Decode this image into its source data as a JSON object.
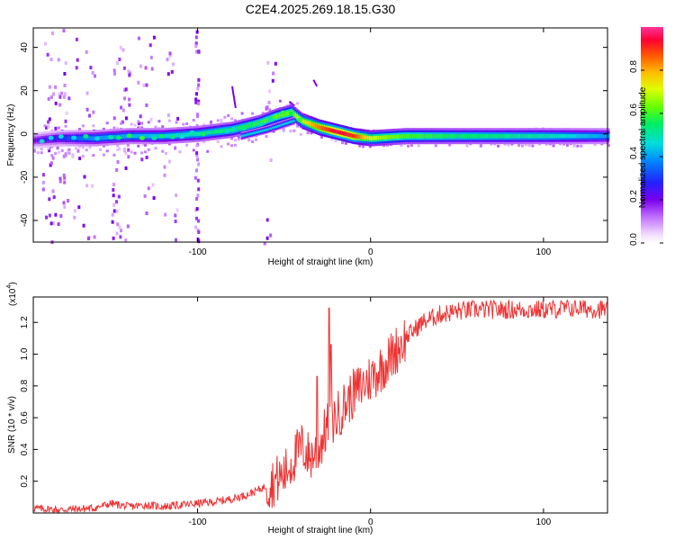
{
  "title": "C2E4.2025.269.18.15.G30",
  "chart_data": [
    {
      "type": "heatmap",
      "title": "C2E4.2025.269.18.15.G30",
      "xlabel": "Height of straight line (km)",
      "ylabel": "Frequency (Hz)",
      "xlim": [
        -195,
        137
      ],
      "ylim": [
        -50,
        49
      ],
      "x_ticks": [
        -100,
        0,
        100
      ],
      "x_tick_labels": [
        "-100",
        "0",
        "100"
      ],
      "y_ticks": [
        -40,
        -20,
        0,
        20,
        40
      ],
      "y_tick_labels": [
        "-40",
        "-20",
        "0",
        "20",
        "40"
      ],
      "colorbar": {
        "label": "Normalized spectral amplitude",
        "range": [
          0,
          1
        ],
        "ticks": [
          0.0,
          0.2,
          0.4,
          0.6,
          0.8
        ],
        "tick_labels": [
          "0.0",
          "0.2",
          "0.4",
          "0.6",
          "0.8"
        ]
      },
      "ridge_center_freq": {
        "x": [
          -195,
          -180,
          -160,
          -140,
          -120,
          -100,
          -80,
          -65,
          -55,
          -46,
          -40,
          -30,
          -20,
          -10,
          0,
          20,
          50,
          100,
          137
        ],
        "y": [
          -3,
          -2,
          -2,
          -1,
          -1,
          0,
          2,
          5,
          8,
          10,
          6,
          3,
          1,
          -1,
          -2,
          -1,
          -1,
          -1,
          -1
        ]
      },
      "ridge_amplitude": {
        "x": [
          -195,
          -160,
          -120,
          -100,
          -80,
          -60,
          -45,
          -30,
          -20,
          -10,
          0,
          20,
          50,
          100,
          137
        ],
        "y": [
          0.2,
          0.4,
          0.45,
          0.5,
          0.55,
          0.6,
          0.65,
          0.85,
          0.95,
          0.9,
          0.7,
          0.6,
          0.55,
          0.5,
          0.4
        ]
      }
    },
    {
      "type": "line",
      "xlabel": "Height of straight line (km)",
      "ylabel": "SNR (10 * v/v)",
      "y_multiplier": "(x10",
      "y_multiplier_exp": "4",
      "y_multiplier_close": ")",
      "xlim": [
        -195,
        137
      ],
      "ylim": [
        0,
        1.36
      ],
      "x_ticks": [
        -100,
        0,
        100
      ],
      "x_tick_labels": [
        "-100",
        "0",
        "100"
      ],
      "y_ticks": [
        0.2,
        0.4,
        0.6,
        0.8,
        1.0,
        1.2
      ],
      "y_tick_labels": [
        "0.2",
        "0.4",
        "0.6",
        "0.8",
        "1.0",
        "1.2"
      ],
      "series": [
        {
          "name": "SNR",
          "color": "#ee3333",
          "x": [
            -195,
            -180,
            -160,
            -150,
            -140,
            -130,
            -120,
            -110,
            -100,
            -90,
            -80,
            -70,
            -60,
            -50,
            -45,
            -40,
            -35,
            -30,
            -25,
            -20,
            -15,
            -10,
            -5,
            0,
            5,
            10,
            15,
            20,
            25,
            30,
            40,
            50,
            60,
            80,
            100,
            120,
            137
          ],
          "y": [
            0.03,
            0.02,
            0.03,
            0.06,
            0.04,
            0.05,
            0.04,
            0.05,
            0.06,
            0.07,
            0.09,
            0.12,
            0.17,
            0.24,
            0.33,
            0.42,
            0.35,
            0.4,
            0.55,
            0.6,
            0.68,
            0.75,
            0.8,
            0.85,
            0.9,
            0.96,
            1.03,
            1.1,
            1.15,
            1.2,
            1.25,
            1.27,
            1.28,
            1.28,
            1.28,
            1.29,
            1.28
          ]
        }
      ],
      "spikes": [
        {
          "x": -24,
          "y": 1.29
        },
        {
          "x": -31,
          "y": 0.86
        },
        {
          "x": -23,
          "y": 1.06
        }
      ]
    }
  ]
}
